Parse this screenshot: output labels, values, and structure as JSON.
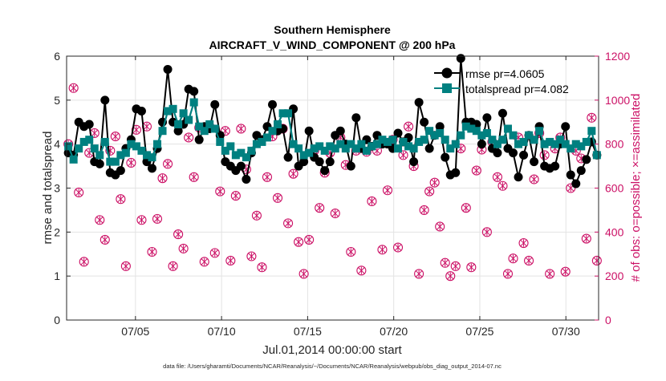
{
  "chart_data": {
    "type": "line",
    "title": "Southern Hemisphere",
    "subtitle": "AIRCRAFT_V_WIND_COMPONENT @ 200 hPa",
    "xlabel": "Jul.01,2014 00:00:00 start",
    "ylabel_left": "rmse and totalspread",
    "ylabel_right": "# of obs: o=possible; ×=assimilated",
    "footnote": "data file: /Users/gharamti/Documents/NCAR/Reanalysis/~/Documents/NCAR/Reanalysis/webpub/obs_diag_output_2014-07.nc",
    "xlim": [
      1.0,
      31.9
    ],
    "ylim_left": [
      0,
      6
    ],
    "ylim_right": [
      0,
      1200
    ],
    "x_ticks": [
      5,
      10,
      15,
      20,
      25,
      30
    ],
    "x_tick_labels": [
      "07/05",
      "07/10",
      "07/15",
      "07/20",
      "07/25",
      "07/30"
    ],
    "y_left_ticks": [
      "0",
      "1",
      "2",
      "3",
      "4",
      "5",
      "6"
    ],
    "y_right_ticks": [
      "0",
      "200",
      "400",
      "600",
      "800",
      "1000",
      "1200"
    ],
    "grid": true,
    "legend_position": "top-right",
    "colors": {
      "rmse": "#000000",
      "spread": "#008080",
      "obs": "#cc1166",
      "axis_right": "#cc1166"
    },
    "series": [
      {
        "name": "rmse pr=4.0605",
        "axis": "left",
        "values": [
          3.8,
          3.75,
          4.5,
          4.4,
          4.45,
          3.6,
          3.55,
          5.0,
          3.35,
          3.3,
          3.4,
          3.9,
          4.1,
          4.8,
          4.75,
          3.6,
          3.45,
          3.9,
          4.5,
          5.7,
          4.5,
          4.3,
          4.45,
          5.25,
          5.2,
          4.1,
          4.4,
          4.35,
          4.9,
          4.2,
          3.6,
          3.5,
          3.4,
          3.5,
          3.2,
          3.8,
          4.2,
          4.1,
          4.4,
          4.9,
          4.3,
          4.35,
          3.7,
          4.8,
          3.5,
          3.6,
          4.3,
          3.7,
          3.6,
          3.4,
          3.6,
          4.2,
          4.3,
          4.0,
          3.5,
          4.6,
          3.9,
          4.1,
          3.95,
          4.2,
          4.0,
          4.0,
          3.9,
          4.25,
          4.05,
          4.15,
          3.6,
          4.95,
          4.5,
          3.9,
          4.2,
          4.4,
          3.7,
          3.3,
          3.35,
          5.95,
          4.5,
          4.5,
          4.45,
          4.0,
          4.6,
          3.9,
          3.8,
          4.7,
          3.9,
          3.8,
          3.25,
          3.75,
          4.2,
          3.6,
          4.4,
          3.5,
          3.45,
          3.5,
          4.0,
          4.4,
          3.3,
          3.1,
          3.4,
          3.65,
          4.05,
          3.75
        ]
      },
      {
        "name": "totalspread pr=4.082",
        "axis": "left",
        "values": [
          3.95,
          3.65,
          3.9,
          4.05,
          4.1,
          3.9,
          3.75,
          4.05,
          3.6,
          3.6,
          3.75,
          3.8,
          4.0,
          3.95,
          3.85,
          3.75,
          3.7,
          4.0,
          4.3,
          4.75,
          4.8,
          4.45,
          4.7,
          4.55,
          4.95,
          4.4,
          4.3,
          4.45,
          4.35,
          4.05,
          3.85,
          3.95,
          3.75,
          3.8,
          3.7,
          3.85,
          4.0,
          4.05,
          4.15,
          4.3,
          4.45,
          4.7,
          4.7,
          4.0,
          3.9,
          3.75,
          3.8,
          3.9,
          3.95,
          3.85,
          3.95,
          3.9,
          4.0,
          3.9,
          4.0,
          3.9,
          4.0,
          3.85,
          3.95,
          4.0,
          4.1,
          4.05,
          4.1,
          3.9,
          4.05,
          3.95,
          3.9,
          4.05,
          4.1,
          4.3,
          4.2,
          4.25,
          4.1,
          3.9,
          4.0,
          4.2,
          4.4,
          4.35,
          4.3,
          4.2,
          4.25,
          4.1,
          4.0,
          4.1,
          4.35,
          4.2,
          4.0,
          4.05,
          4.2,
          4.1,
          4.3,
          4.0,
          4.05,
          4.0,
          4.1,
          4.0,
          3.9,
          4.0,
          3.95,
          4.05,
          4.3,
          3.75
        ]
      },
      {
        "name": "# of obs possible",
        "axis": "right",
        "values": [
          800,
          1055,
          580,
          265,
          760,
          850,
          455,
          365,
          770,
          835,
          550,
          245,
          715,
          865,
          455,
          880,
          310,
          460,
          645,
          710,
          245,
          390,
          325,
          830,
          650,
          875,
          265,
          880,
          305,
          585,
          860,
          270,
          565,
          870,
          685,
          290,
          475,
          240,
          650,
          835,
          555,
          870,
          440,
          665,
          355,
          210,
          365,
          770,
          510,
          670,
          760,
          485,
          830,
          705,
          310,
          770,
          225,
          765,
          540,
          770,
          320,
          590,
          820,
          330,
          750,
          880,
          700,
          210,
          500,
          585,
          625,
          425,
          260,
          200,
          245,
          780,
          510,
          240,
          680,
          775,
          400,
          810,
          650,
          610,
          210,
          280,
          830,
          350,
          270,
          640,
          850,
          750,
          210,
          780,
          830,
          220,
          600,
          770,
          735,
          370,
          920,
          270
        ]
      },
      {
        "name": "# of obs assimilated",
        "axis": "right",
        "values": [
          800,
          1055,
          580,
          265,
          760,
          850,
          455,
          365,
          770,
          835,
          550,
          245,
          715,
          865,
          455,
          880,
          310,
          460,
          645,
          710,
          245,
          390,
          325,
          830,
          650,
          875,
          265,
          880,
          305,
          585,
          860,
          270,
          565,
          870,
          685,
          290,
          475,
          240,
          650,
          835,
          555,
          870,
          440,
          665,
          355,
          210,
          365,
          770,
          510,
          670,
          760,
          485,
          830,
          705,
          310,
          770,
          225,
          765,
          540,
          770,
          320,
          590,
          820,
          330,
          750,
          880,
          700,
          210,
          500,
          585,
          625,
          425,
          260,
          200,
          245,
          780,
          510,
          240,
          680,
          775,
          400,
          810,
          650,
          610,
          210,
          280,
          830,
          350,
          270,
          640,
          850,
          750,
          210,
          780,
          830,
          220,
          600,
          770,
          735,
          370,
          920,
          270
        ]
      }
    ]
  }
}
